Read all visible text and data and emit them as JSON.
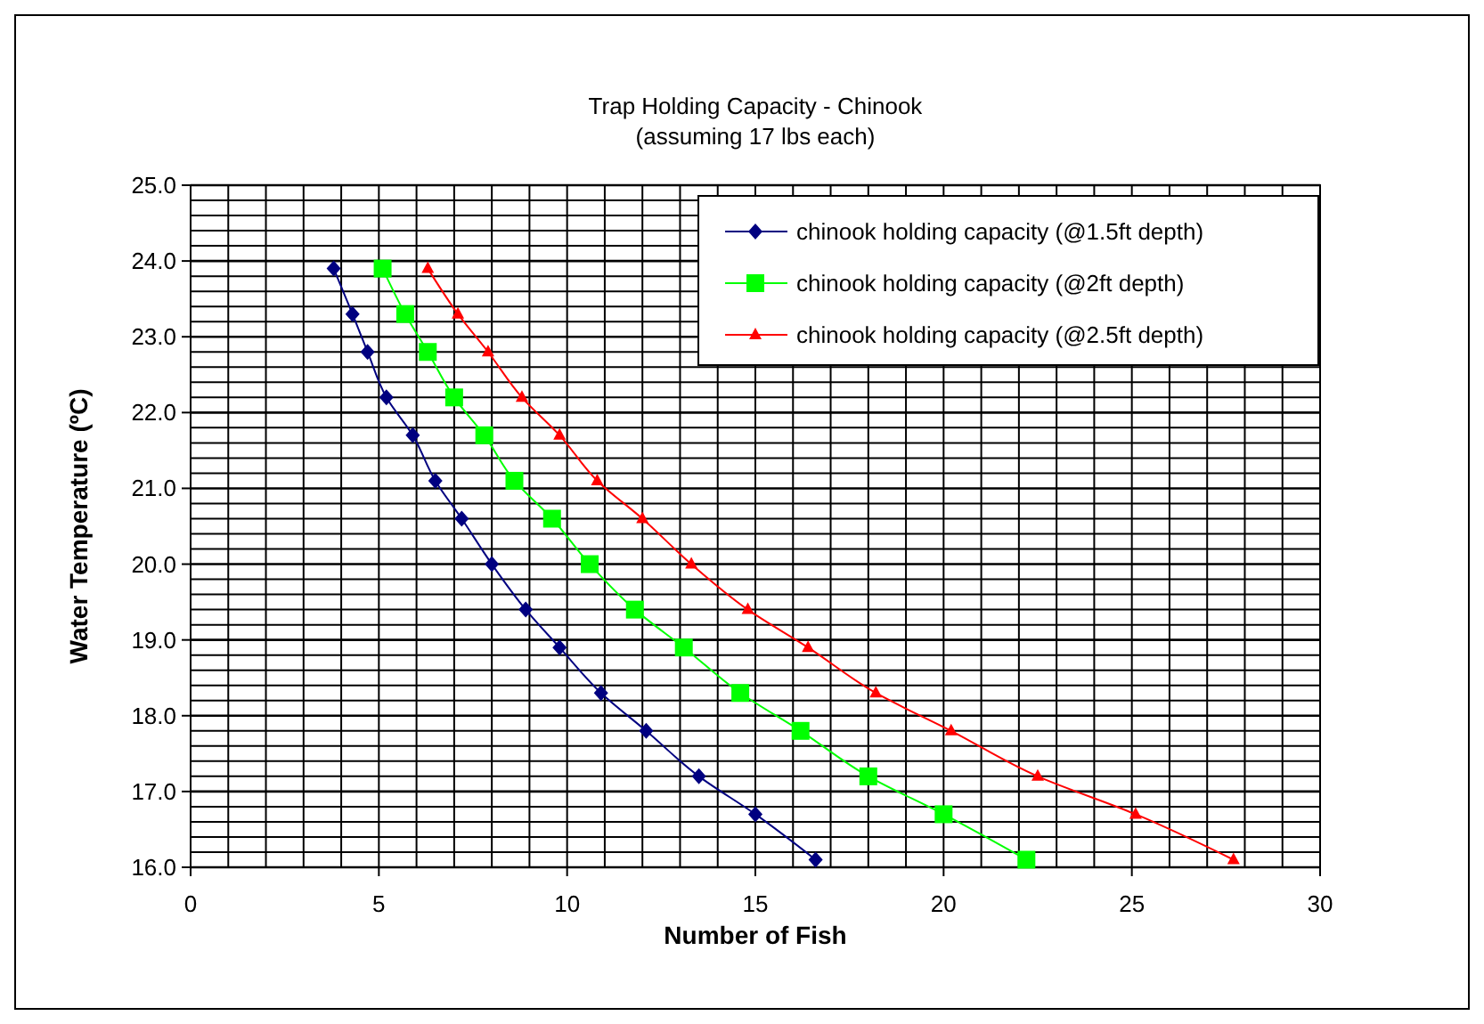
{
  "chart_data": {
    "type": "line",
    "title": "Trap Holding Capacity - Chinook",
    "subtitle": "(assuming 17 lbs each)",
    "xlabel": "Number of Fish",
    "ylabel": "Water Temperature (ºC)",
    "xlim": [
      0,
      30
    ],
    "ylim": [
      16,
      25
    ],
    "xticks": [
      0,
      {
        "value": 1,
        "label": null
      },
      {
        "value": 2,
        "label": null
      },
      {
        "value": 3,
        "label": null
      },
      {
        "value": 4,
        "label": null
      },
      5,
      {
        "value": 6,
        "label": null
      },
      {
        "value": 7,
        "label": null
      },
      {
        "value": 8,
        "label": null
      },
      {
        "value": 9,
        "label": null
      },
      10,
      {
        "value": 11,
        "label": null
      },
      {
        "value": 12,
        "label": null
      },
      {
        "value": 13,
        "label": null
      },
      {
        "value": 14,
        "label": null
      },
      15,
      {
        "value": 16,
        "label": null
      },
      {
        "value": 17,
        "label": null
      },
      {
        "value": 18,
        "label": null
      },
      {
        "value": 19,
        "label": null
      },
      20,
      {
        "value": 21,
        "label": null
      },
      {
        "value": 22,
        "label": null
      },
      {
        "value": 23,
        "label": null
      },
      {
        "value": 24,
        "label": null
      },
      25,
      {
        "value": 26,
        "label": null
      },
      {
        "value": 27,
        "label": null
      },
      {
        "value": 28,
        "label": null
      },
      {
        "value": 29,
        "label": null
      },
      30
    ],
    "yticks": [
      {
        "value": 16,
        "label": "16.0"
      },
      {
        "value": 16.2,
        "label": null
      },
      {
        "value": 16.4,
        "label": null
      },
      {
        "value": 16.6,
        "label": null
      },
      {
        "value": 16.8,
        "label": null
      },
      {
        "value": 17,
        "label": "17.0"
      },
      {
        "value": 17.2,
        "label": null
      },
      {
        "value": 17.4,
        "label": null
      },
      {
        "value": 17.6,
        "label": null
      },
      {
        "value": 17.8,
        "label": null
      },
      {
        "value": 18,
        "label": "18.0"
      },
      {
        "value": 18.2,
        "label": null
      },
      {
        "value": 18.4,
        "label": null
      },
      {
        "value": 18.6,
        "label": null
      },
      {
        "value": 18.8,
        "label": null
      },
      {
        "value": 19,
        "label": "19.0"
      },
      {
        "value": 19.2,
        "label": null
      },
      {
        "value": 19.4,
        "label": null
      },
      {
        "value": 19.6,
        "label": null
      },
      {
        "value": 19.8,
        "label": null
      },
      {
        "value": 20,
        "label": "20.0"
      },
      {
        "value": 20.2,
        "label": null
      },
      {
        "value": 20.4,
        "label": null
      },
      {
        "value": 20.6,
        "label": null
      },
      {
        "value": 20.8,
        "label": null
      },
      {
        "value": 21,
        "label": "21.0"
      },
      {
        "value": 21.2,
        "label": null
      },
      {
        "value": 21.4,
        "label": null
      },
      {
        "value": 21.6,
        "label": null
      },
      {
        "value": 21.8,
        "label": null
      },
      {
        "value": 22,
        "label": "22.0"
      },
      {
        "value": 22.2,
        "label": null
      },
      {
        "value": 22.4,
        "label": null
      },
      {
        "value": 22.6,
        "label": null
      },
      {
        "value": 22.8,
        "label": null
      },
      {
        "value": 23,
        "label": "23.0"
      },
      {
        "value": 23.2,
        "label": null
      },
      {
        "value": 23.4,
        "label": null
      },
      {
        "value": 23.6,
        "label": null
      },
      {
        "value": 23.8,
        "label": null
      },
      {
        "value": 24,
        "label": "24.0"
      },
      {
        "value": 24.2,
        "label": null
      },
      {
        "value": 24.4,
        "label": null
      },
      {
        "value": 24.6,
        "label": null
      },
      {
        "value": 24.8,
        "label": null
      },
      {
        "value": 25,
        "label": "25.0"
      }
    ],
    "grid": true,
    "legend": "top right",
    "line_style": "solid",
    "series": [
      {
        "name": "chinook holding capacity (@1.5ft depth)",
        "color": "#000080",
        "marker": "diamond",
        "x": [
          3.8,
          4.3,
          4.7,
          5.2,
          5.9,
          6.5,
          7.2,
          8.0,
          8.9,
          9.8,
          10.9,
          12.1,
          13.5,
          15.0,
          16.6
        ],
        "values": [
          23.9,
          23.3,
          22.8,
          22.2,
          21.7,
          21.1,
          20.6,
          20.0,
          19.4,
          18.9,
          18.3,
          17.8,
          17.2,
          16.7,
          16.1
        ]
      },
      {
        "name": "chinook holding capacity (@2ft depth)",
        "color": "#00ff00",
        "marker": "square",
        "x": [
          5.1,
          5.7,
          6.3,
          7.0,
          7.8,
          8.6,
          9.6,
          10.6,
          11.8,
          13.1,
          14.6,
          16.2,
          18.0,
          20.0,
          22.2
        ],
        "values": [
          23.9,
          23.3,
          22.8,
          22.2,
          21.7,
          21.1,
          20.6,
          20.0,
          19.4,
          18.9,
          18.3,
          17.8,
          17.2,
          16.7,
          16.1
        ]
      },
      {
        "name": "chinook holding capacity (@2.5ft depth)",
        "color": "#ff0000",
        "marker": "triangle",
        "x": [
          6.3,
          7.1,
          7.9,
          8.8,
          9.8,
          10.8,
          12.0,
          13.3,
          14.8,
          16.4,
          18.2,
          20.2,
          22.5,
          25.1,
          27.7
        ],
        "values": [
          23.9,
          23.3,
          22.8,
          22.2,
          21.7,
          21.1,
          20.6,
          20.0,
          19.4,
          18.9,
          18.3,
          17.8,
          17.2,
          16.7,
          16.1
        ]
      }
    ]
  }
}
